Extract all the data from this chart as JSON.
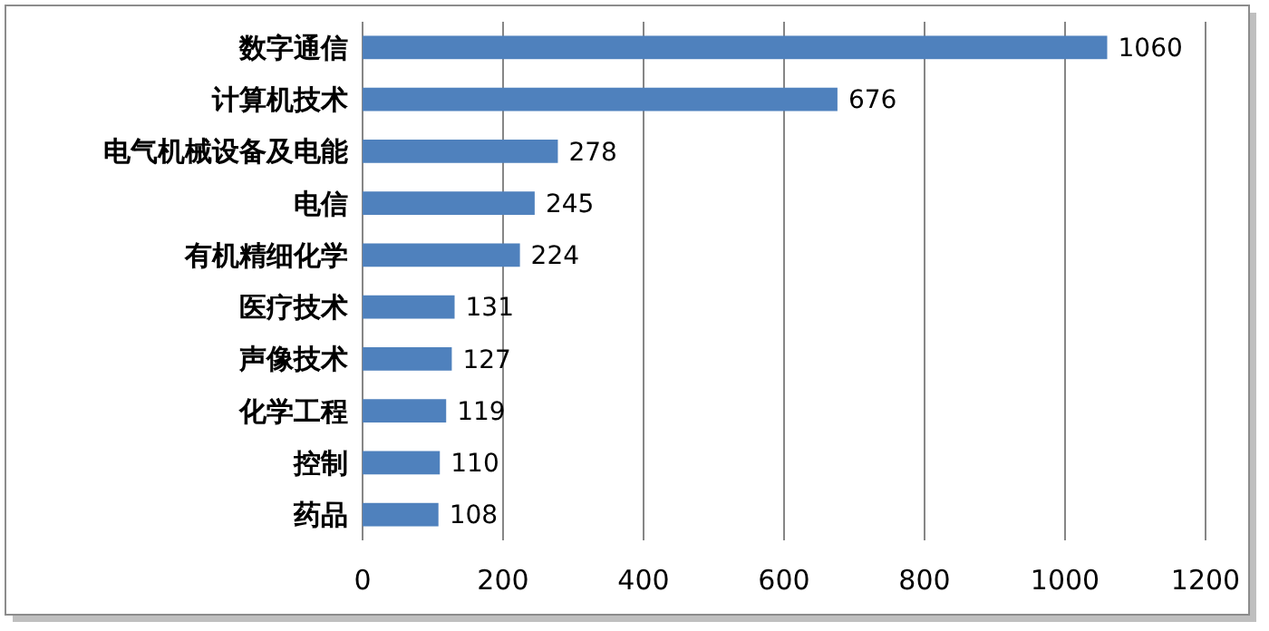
{
  "chart_data": {
    "type": "bar",
    "orientation": "horizontal",
    "categories": [
      "数字通信",
      "计算机技术",
      "电气机械设备及电能",
      "电信",
      "有机精细化学",
      "医疗技术",
      "声像技术",
      "化学工程",
      "控制",
      "药品"
    ],
    "values": [
      1060,
      676,
      278,
      245,
      224,
      131,
      127,
      119,
      110,
      108
    ],
    "color": "#4f81bd",
    "xlim": [
      0,
      1200
    ],
    "xticks": [
      0,
      200,
      400,
      600,
      800,
      1000,
      1200
    ],
    "grid": "x",
    "data_labels": true
  }
}
